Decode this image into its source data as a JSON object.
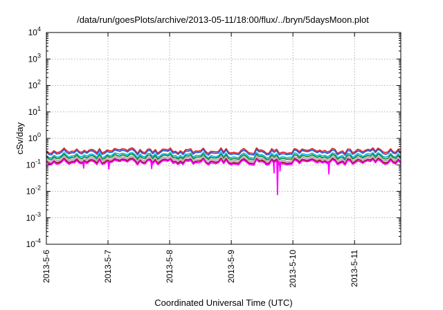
{
  "chart_data": {
    "type": "line",
    "title": "/data/run/goesPlots/archive/2013-05-11/18:00/flux/../bryn/5daysMoon.plot",
    "xlabel": "Coordinated Universal Time (UTC)",
    "ylabel": "cSv/day",
    "yscale": "log",
    "ylim": [
      0.0001,
      10000
    ],
    "xlim": [
      "2013-05-06T00:00",
      "2013-05-11T18:00"
    ],
    "grid": true,
    "y_ticks": [
      {
        "base": "10",
        "exp": "4",
        "value": 10000
      },
      {
        "base": "10",
        "exp": "3",
        "value": 1000
      },
      {
        "base": "10",
        "exp": "2",
        "value": 100
      },
      {
        "base": "10",
        "exp": "1",
        "value": 10
      },
      {
        "base": "10",
        "exp": "0",
        "value": 1
      },
      {
        "base": "10",
        "exp": "-1",
        "value": 0.1
      },
      {
        "base": "10",
        "exp": "-2",
        "value": 0.01
      },
      {
        "base": "10",
        "exp": "-3",
        "value": 0.001
      },
      {
        "base": "10",
        "exp": "-4",
        "value": 0.0001
      }
    ],
    "x_ticks": [
      {
        "label": "2013-5-6",
        "value": "2013-05-06T00:00"
      },
      {
        "label": "2013-5-7",
        "value": "2013-05-07T00:00"
      },
      {
        "label": "2013-5-8",
        "value": "2013-05-08T00:00"
      },
      {
        "label": "2013-5-9",
        "value": "2013-05-09T00:00"
      },
      {
        "label": "2013-5-10",
        "value": "2013-05-10T00:00"
      },
      {
        "label": "2013-5-11",
        "value": "2013-05-11T00:00"
      }
    ],
    "series": [
      {
        "color": "#e4262b",
        "base": 0.34,
        "spikes": []
      },
      {
        "color": "#2f5cd8",
        "base": 0.3,
        "spikes": []
      },
      {
        "color": "#16b8e0",
        "base": 0.23,
        "spikes": []
      },
      {
        "color": "#1a8c2e",
        "base": 0.2,
        "spikes": []
      },
      {
        "color": "#b0b0b0",
        "base": 0.17,
        "spikes": []
      },
      {
        "color": "#e6a8e6",
        "base": 0.155,
        "spikes": []
      },
      {
        "color": "#8a1f1f",
        "base": 0.14,
        "spikes": []
      },
      {
        "color": "#ff00ff",
        "base": 0.125,
        "spikes": [
          {
            "x": "2013-05-06T14:30",
            "y": 0.075
          },
          {
            "x": "2013-05-07T00:20",
            "y": 0.07
          },
          {
            "x": "2013-05-07T17:00",
            "y": 0.072
          },
          {
            "x": "2013-05-09T16:40",
            "y": 0.05
          },
          {
            "x": "2013-05-09T18:00",
            "y": 0.0075
          },
          {
            "x": "2013-05-09T19:00",
            "y": 0.06
          },
          {
            "x": "2013-05-10T14:00",
            "y": 0.045
          }
        ]
      }
    ]
  }
}
